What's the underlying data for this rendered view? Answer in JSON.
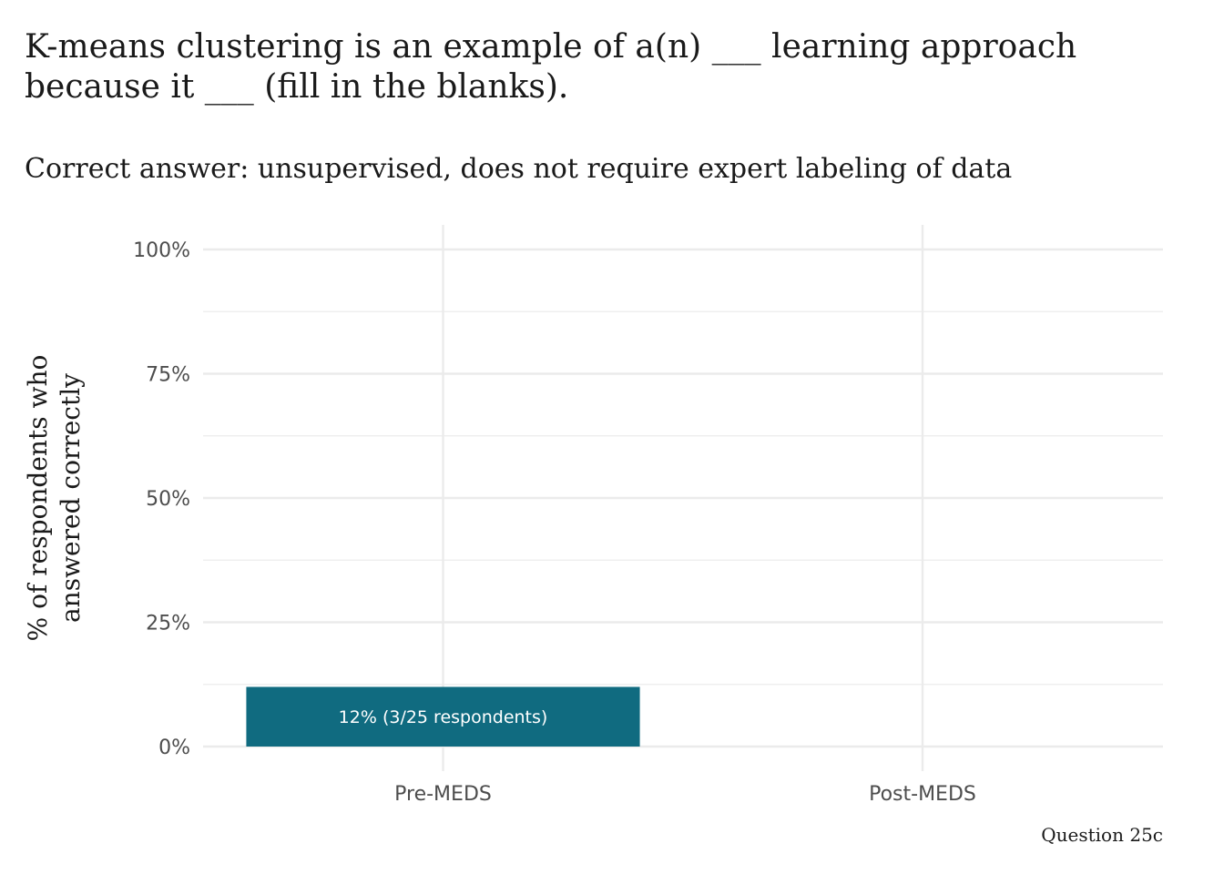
{
  "chart_data": {
    "type": "bar",
    "title": "K-means clustering is an example of a(n) ___ learning approach because it ___ (fill in the blanks).",
    "subtitle": "Correct answer: unsupervised, does not require expert labeling of data",
    "ylabel_lines": [
      "% of respondents who",
      "answered correctly"
    ],
    "xlabel": "",
    "caption": "Question 25c",
    "categories": [
      "Pre-MEDS",
      "Post-MEDS"
    ],
    "values": [
      12,
      null
    ],
    "data_labels": [
      "12% (3/25 respondents)",
      ""
    ],
    "ylim": [
      0,
      100
    ],
    "yticks": [
      0,
      25,
      50,
      75,
      100
    ],
    "ytick_labels": [
      "0%",
      "25%",
      "50%",
      "75%",
      "100%"
    ],
    "grid": true,
    "legend": "none",
    "bar_color": "#106b80",
    "grid_color": "#ebebeb"
  }
}
